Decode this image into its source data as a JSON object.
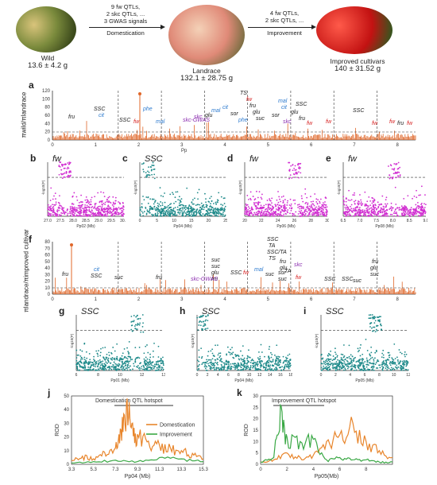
{
  "top": {
    "wild": {
      "name": "Wild",
      "weight": "13.6 ± 4.2 g"
    },
    "landrace": {
      "name": "Landrace",
      "weight": "132.1 ± 28.75 g"
    },
    "improved": {
      "name": "Improved cultivars",
      "weight": "140 ± 31.52 g"
    },
    "domestication_notes": [
      "9 fw QTLs,",
      "2 skc QTLs, ...",
      "3 GWAS signals"
    ],
    "domestication_label": "Domestication",
    "improvement_notes": [
      "4 fw QTLs,",
      "2 skc QTLs, ..."
    ],
    "improvement_label": "Improvement"
  },
  "panels": {
    "a": {
      "letter": "a",
      "ylabel": "πwild/πlandrace",
      "ticks_y": [
        "0",
        "20",
        "40",
        "60",
        "80",
        "100",
        "120"
      ],
      "ticks_x": [
        "0",
        "1",
        "2",
        "3",
        "4",
        "5",
        "6",
        "7",
        "8"
      ],
      "labels": [
        "fru",
        "SSC",
        "cit",
        "SSC",
        "fw",
        "phe",
        "mal",
        "skc-GWAS",
        "skc",
        "glu",
        "mal",
        "cit",
        "sor",
        "phe",
        "TS",
        "fw",
        "fru",
        "glu",
        "suc",
        "sor",
        "mal",
        "cit",
        "SSC",
        "glu",
        "fru",
        "fw",
        "skc",
        "fw",
        "SSC",
        "fw",
        "fw",
        "fru",
        "fw"
      ]
    },
    "b": {
      "letter": "b",
      "trait": "fw",
      "xlabel": "Pp02 (Mb)",
      "ylabel": "-log10(P)",
      "ticks_x": [
        "27.0",
        "27.5",
        "28.0",
        "28.5",
        "29.0",
        "29.5",
        "30.0"
      ]
    },
    "c": {
      "letter": "c",
      "trait": "SSC",
      "xlabel": "Pp04 (Mb)",
      "ylabel": "-log10(P)",
      "ticks_x": [
        "0",
        "5",
        "10",
        "15",
        "20",
        "25"
      ]
    },
    "d": {
      "letter": "d",
      "trait": "fw",
      "xlabel": "Pp06 (Mb)",
      "ylabel": "-log10(P)",
      "ticks_x": [
        "20",
        "22",
        "24",
        "26",
        "28",
        "30"
      ]
    },
    "e": {
      "letter": "e",
      "trait": "fw",
      "xlabel": "Pp08 (Mb)",
      "ylabel": "-log10(P)",
      "ticks_x": [
        "6.5",
        "7.0",
        "7.5",
        "8.0",
        "8.5",
        "9.0"
      ]
    },
    "f": {
      "letter": "f",
      "ylabel": "πlandrace/πimproved cultivar",
      "ticks_y": [
        "0",
        "10",
        "20",
        "30",
        "40",
        "50",
        "60",
        "70",
        "80"
      ],
      "ticks_x": [
        "0",
        "1",
        "2",
        "3",
        "4",
        "5",
        "6",
        "7",
        "8"
      ],
      "labels": [
        "fru",
        "cit",
        "SSC",
        "suc",
        "fru",
        "suc",
        "glu",
        "suc",
        "fru",
        "skc-GWAS",
        "SSC",
        "fw",
        "mal",
        "suc",
        "SSC",
        "TA",
        "SSC/TA",
        "TS",
        "fru",
        "glu",
        "sor",
        "suc",
        "skc",
        "fw",
        "TA",
        "SSC",
        "SSC",
        "suc",
        "fru",
        "glu",
        "suc"
      ]
    },
    "g": {
      "letter": "g",
      "trait": "SSC",
      "xlabel": "Pp01 (Mb)",
      "ylabel": "-log10(P)",
      "ticks_x": [
        "6",
        "8",
        "10",
        "12",
        "13"
      ]
    },
    "h": {
      "letter": "h",
      "trait": "SSC",
      "xlabel": "Pp04 (Mb)",
      "ylabel": "-log10(P)",
      "ticks_x": [
        "0",
        "2",
        "4",
        "6",
        "8",
        "10",
        "12",
        "14",
        "16",
        "18"
      ]
    },
    "i": {
      "letter": "i",
      "trait": "SSC",
      "xlabel": "Pp05 (Mb)",
      "ylabel": "-log10(P)",
      "ticks_x": [
        "0",
        "2",
        "4",
        "6",
        "8",
        "10",
        "12"
      ]
    },
    "j": {
      "letter": "j",
      "title": "Domestication QTL hotspot",
      "xlabel": "Pp04 (Mb)",
      "ylabel": "ROD",
      "ticks_x": [
        "3.3",
        "5.3",
        "7.3",
        "9.3",
        "11.3",
        "13.3",
        "15.3"
      ],
      "ticks_y": [
        "0",
        "10",
        "20",
        "30",
        "40",
        "50"
      ],
      "legend": [
        "Domestication",
        "Improvement"
      ]
    },
    "k": {
      "letter": "k",
      "title": "Improvement QTL hotspot",
      "xlabel": "Pp05(Mb)",
      "ylabel": "ROD",
      "ticks_x": [
        "0",
        "2",
        "4",
        "6",
        "8"
      ],
      "ticks_y": [
        "0",
        "5",
        "10",
        "15",
        "20",
        "25",
        "30"
      ]
    }
  },
  "chart_data": [
    {
      "type": "line",
      "panel": "j",
      "title": "Domestication QTL hotspot",
      "xlabel": "Pp04 (Mb)",
      "ylabel": "ROD",
      "xlim": [
        3.3,
        15.3
      ],
      "ylim": [
        0,
        50
      ],
      "series": [
        {
          "name": "Domestication",
          "color": "#e8852b",
          "x": [
            3.3,
            4.3,
            5.3,
            6.3,
            7.3,
            7.8,
            8.3,
            8.8,
            9.3,
            10.3,
            11.3,
            12.3,
            13.3,
            14.3,
            15.3
          ],
          "values": [
            3,
            6,
            4,
            9,
            12,
            25,
            45,
            30,
            22,
            17,
            14,
            12,
            10,
            8,
            4
          ]
        },
        {
          "name": "Improvement",
          "color": "#3aa845",
          "x": [
            3.3,
            5.3,
            7.3,
            9.3,
            11.3,
            13.3,
            15.3
          ],
          "values": [
            1,
            2,
            3,
            2,
            5,
            4,
            2
          ]
        }
      ]
    },
    {
      "type": "line",
      "panel": "k",
      "title": "Improvement QTL hotspot",
      "xlabel": "Pp05(Mb)",
      "ylabel": "ROD",
      "xlim": [
        0,
        10
      ],
      "ylim": [
        0,
        30
      ],
      "series": [
        {
          "name": "Domestication",
          "color": "#e8852b",
          "x": [
            0,
            1,
            2,
            3,
            4,
            5,
            6,
            7,
            8,
            9,
            10
          ],
          "values": [
            1,
            2,
            5,
            3,
            4,
            10,
            13,
            18,
            10,
            6,
            3
          ]
        },
        {
          "name": "Improvement",
          "color": "#3aa845",
          "x": [
            0,
            1,
            1.5,
            2,
            3,
            4,
            5,
            6,
            7,
            8,
            9,
            10
          ],
          "values": [
            1,
            3,
            26,
            12,
            10,
            11,
            2,
            3,
            2,
            2,
            1,
            1
          ]
        }
      ]
    }
  ]
}
